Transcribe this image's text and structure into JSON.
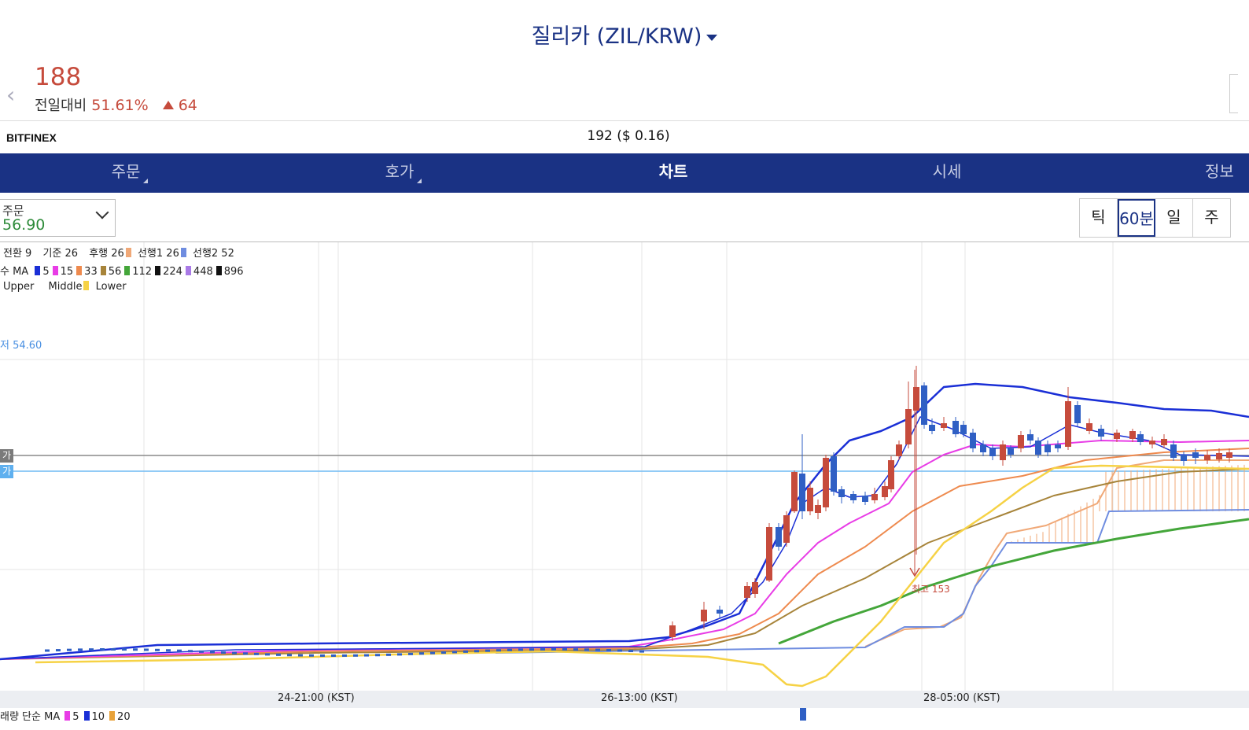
{
  "header": {
    "title": "질리카 (ZIL/KRW)",
    "price": "188",
    "change_label": "전일대비",
    "change_pct": "51.61%",
    "change_amount": "64",
    "back_icon": "chevron-left-icon"
  },
  "exchange": {
    "name": "BITFINEX",
    "ref_price": "192 ($ 0.16)"
  },
  "tabs": [
    {
      "label": "주문",
      "active": false
    },
    {
      "label": "호가",
      "active": false
    },
    {
      "label": "차트",
      "active": true
    },
    {
      "label": "시세",
      "active": false
    },
    {
      "label": "정보",
      "active": false
    }
  ],
  "order_select": {
    "label": "주문",
    "value": "56.90"
  },
  "periods": [
    {
      "label": "틱",
      "selected": false
    },
    {
      "label": "60분",
      "selected": true
    },
    {
      "label": "일",
      "selected": false
    },
    {
      "label": "주",
      "selected": false
    }
  ],
  "legends": {
    "ichimoku": [
      {
        "text": "전환 9"
      },
      {
        "text": "기준 26"
      },
      {
        "text": "후행 26",
        "color": "#f0a877"
      },
      {
        "text": "선행1 26",
        "color": "#6f8de0"
      },
      {
        "text": "선행2 52"
      }
    ],
    "ma_prefix": "수 MA",
    "ma": [
      {
        "text": "5",
        "color": "#1a2fd6"
      },
      {
        "text": "15",
        "color": "#e83ce6"
      },
      {
        "text": "33",
        "color": "#ee8a4e"
      },
      {
        "text": "56",
        "color": "#a7843a"
      },
      {
        "text": "112",
        "color": "#44a63a"
      },
      {
        "text": "224",
        "color": "#111111"
      },
      {
        "text": "448",
        "color": "#a97ae6"
      },
      {
        "text": "896",
        "color": "#111111"
      }
    ],
    "bollinger": [
      {
        "text": "Upper"
      },
      {
        "text": "Middle",
        "color": "#f6d245"
      },
      {
        "text": "Lower"
      }
    ]
  },
  "chart_labels": {
    "low_label": "저 54.60",
    "high_label": "최고 153",
    "line_badge_1": "가",
    "line_badge_2": "가",
    "x_ticks": [
      "24-21:00 (KST)",
      "26-13:00 (KST)",
      "28-05:00 (KST)"
    ],
    "volume_legend_prefix": "래량 단순 MA",
    "volume_ma": [
      {
        "text": "5",
        "color": "#e83ce6"
      },
      {
        "text": "10",
        "color": "#1a2fd6"
      },
      {
        "text": "20",
        "color": "#e8a23a"
      }
    ]
  },
  "colors": {
    "brand": "#1a3284",
    "up": "#c64b3c",
    "down": "#2f5fc4",
    "order_value": "#2e8b3a"
  }
}
